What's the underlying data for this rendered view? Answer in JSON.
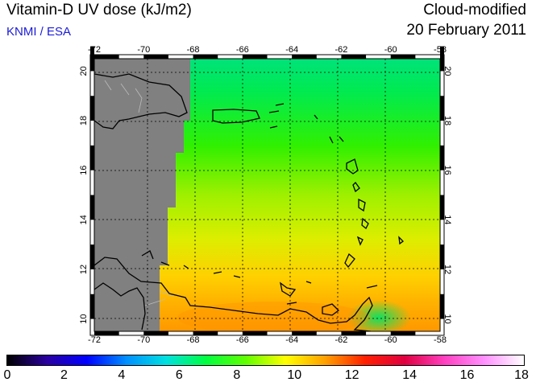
{
  "header": {
    "title": "Vitamin-D UV dose (kJ/m2)",
    "source": "KNMI / ESA",
    "product": "Cloud-modified",
    "date": "20 February 2011"
  },
  "map": {
    "lon_range": [
      -72,
      -58
    ],
    "lat_range": [
      9.5,
      20.5
    ],
    "lon_ticks": [
      "-72",
      "-70",
      "-68",
      "-66",
      "-64",
      "-62",
      "-60",
      "-58"
    ],
    "lat_ticks": [
      "10",
      "12",
      "14",
      "16",
      "18",
      "20"
    ],
    "no_data_color": "#808080"
  },
  "colorbar": {
    "ticks": [
      "0",
      "2",
      "4",
      "6",
      "8",
      "10",
      "12",
      "14",
      "16",
      "18"
    ],
    "range": [
      0,
      18
    ],
    "colors": [
      "#000000",
      "#2a00a0",
      "#0000ff",
      "#0090ff",
      "#00e0e0",
      "#00ff40",
      "#60ff00",
      "#ffff00",
      "#ffa000",
      "#ff2000",
      "#e00040",
      "#ff40c0",
      "#ff90ff",
      "#ffffff"
    ]
  }
}
